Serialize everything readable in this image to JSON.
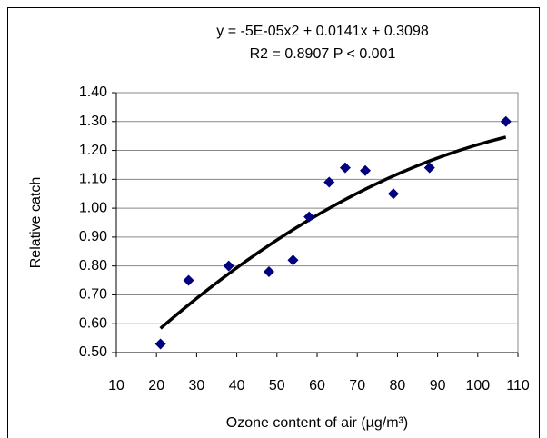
{
  "chart_data": {
    "type": "scatter",
    "annotations": [
      "y = -5E-05x2 + 0.0141x + 0.3098",
      "R2 = 0.8907 P < 0.001"
    ],
    "x_label": "Ozone content of air (µg/m³)",
    "y_label": "Relative catch",
    "series": [
      {
        "color": "#000080",
        "x": [
          21,
          28,
          38,
          48,
          54,
          58,
          63,
          67,
          72,
          79,
          88,
          107
        ],
        "values": [
          0.53,
          0.75,
          0.8,
          0.78,
          0.82,
          0.97,
          1.09,
          1.14,
          1.13,
          1.05,
          1.14,
          1.3
        ]
      }
    ],
    "trendline": {
      "color": "#000000",
      "coefficients": [
        -5e-05,
        0.0141,
        0.3098
      ],
      "xrange": [
        21,
        107
      ]
    },
    "xlim": [
      10,
      110
    ],
    "xticks": [
      10,
      20,
      30,
      40,
      50,
      60,
      70,
      80,
      90,
      100,
      110
    ],
    "ylim": [
      0.5,
      1.4
    ],
    "yticks": [
      {
        "value": 0.5,
        "label": "0.50"
      },
      {
        "value": 0.6,
        "label": "0.60"
      },
      {
        "value": 0.7,
        "label": "0.70"
      },
      {
        "value": 0.8,
        "label": "0.80"
      },
      {
        "value": 0.9,
        "label": "0.90"
      },
      {
        "value": 1.0,
        "label": "1.00"
      },
      {
        "value": 1.1,
        "label": "1.10"
      },
      {
        "value": 1.2,
        "label": "1.20"
      },
      {
        "value": 1.3,
        "label": "1.30"
      },
      {
        "value": 1.4,
        "label": "1.40"
      }
    ],
    "grid": true
  }
}
